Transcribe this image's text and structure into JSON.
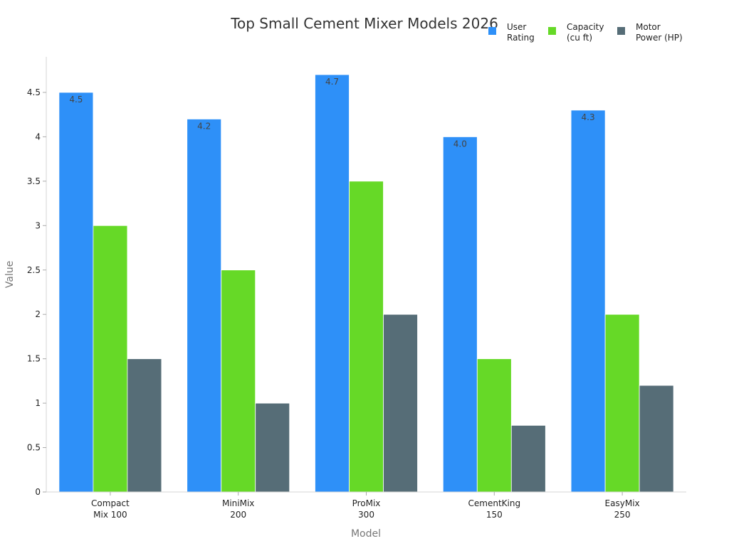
{
  "chart_data": {
    "type": "bar",
    "title": "Top Small Cement Mixer Models 2026",
    "xlabel": "Model",
    "ylabel": "Value",
    "ylim": [
      0,
      4.9
    ],
    "yticks": [
      "0",
      "0.5",
      "1",
      "1.5",
      "2",
      "2.5",
      "3",
      "3.5",
      "4",
      "4.5"
    ],
    "categories": [
      [
        "Compact",
        "Mix 100"
      ],
      [
        "MiniMix",
        "200"
      ],
      [
        "ProMix",
        "300"
      ],
      [
        "CementKing",
        "150"
      ],
      [
        "EasyMix",
        "250"
      ]
    ],
    "series": [
      {
        "name": [
          "User",
          "Rating"
        ],
        "color": "#2E90F8",
        "values": [
          4.5,
          4.2,
          4.7,
          4.0,
          4.3
        ],
        "labels": [
          "4.5",
          "4.2",
          "4.7",
          "4.0",
          "4.3"
        ]
      },
      {
        "name": [
          "Capacity",
          "(cu ft)"
        ],
        "color": "#66D927",
        "values": [
          3.0,
          2.5,
          3.5,
          1.5,
          2.0
        ]
      },
      {
        "name": [
          "Motor",
          "Power (HP)"
        ],
        "color": "#566D77",
        "values": [
          1.5,
          1.0,
          2.0,
          0.75,
          1.2
        ]
      }
    ],
    "legend_position": "top-right",
    "grid": false
  }
}
